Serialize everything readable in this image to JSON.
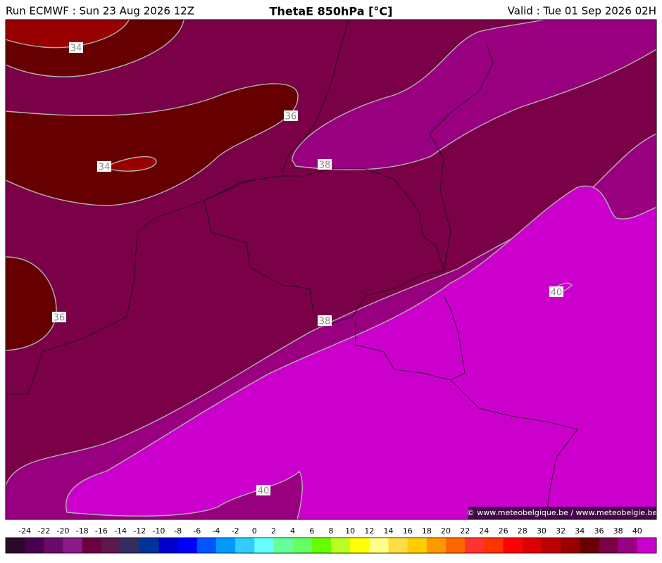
{
  "header": {
    "run": "Run ECMWF : Sun 23 Aug 2026 12Z",
    "title": "ThetaE 850hPa [°C]",
    "valid": "Valid : Tue 01 Sep 2026 02H"
  },
  "map": {
    "contour_labels": [
      34,
      36,
      34,
      36,
      38,
      38,
      40,
      40
    ],
    "credit": "© www.meteobelgique.be / www.meteobelgie.be"
  },
  "colorbar": {
    "ticks": [
      -24,
      -22,
      -20,
      -18,
      -16,
      -14,
      -12,
      -10,
      -8,
      -6,
      -4,
      -2,
      0,
      2,
      4,
      6,
      8,
      10,
      12,
      14,
      16,
      18,
      20,
      22,
      24,
      26,
      28,
      30,
      32,
      34,
      36,
      38,
      40
    ],
    "colors": [
      "#2a0a2a",
      "#4a0050",
      "#6a0a6a",
      "#8a1a8a",
      "#6a0040",
      "#5a1a50",
      "#303060",
      "#003399",
      "#0000cc",
      "#0000ff",
      "#0055ff",
      "#0099ff",
      "#33ccff",
      "#66ffff",
      "#66ff99",
      "#66ff66",
      "#66ff00",
      "#bbff22",
      "#ffff00",
      "#ffff88",
      "#ffdd44",
      "#ffcc00",
      "#ff9900",
      "#ff6600",
      "#ff3333",
      "#ff3300",
      "#ff0000",
      "#dd0000",
      "#bb0000",
      "#990000",
      "#660000",
      "#7a0048",
      "#990080",
      "#cc00cc"
    ]
  }
}
